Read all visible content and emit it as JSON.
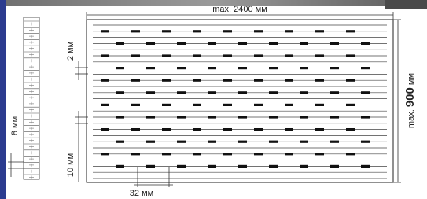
{
  "dimensions": {
    "width": "max. 2400 мм",
    "height_prefix": "max.",
    "height_value": "900",
    "height_unit": "мм",
    "gap": "2 мм",
    "strip": "8 мм",
    "pitch": "10 мм",
    "spacing": "32 мм"
  }
}
